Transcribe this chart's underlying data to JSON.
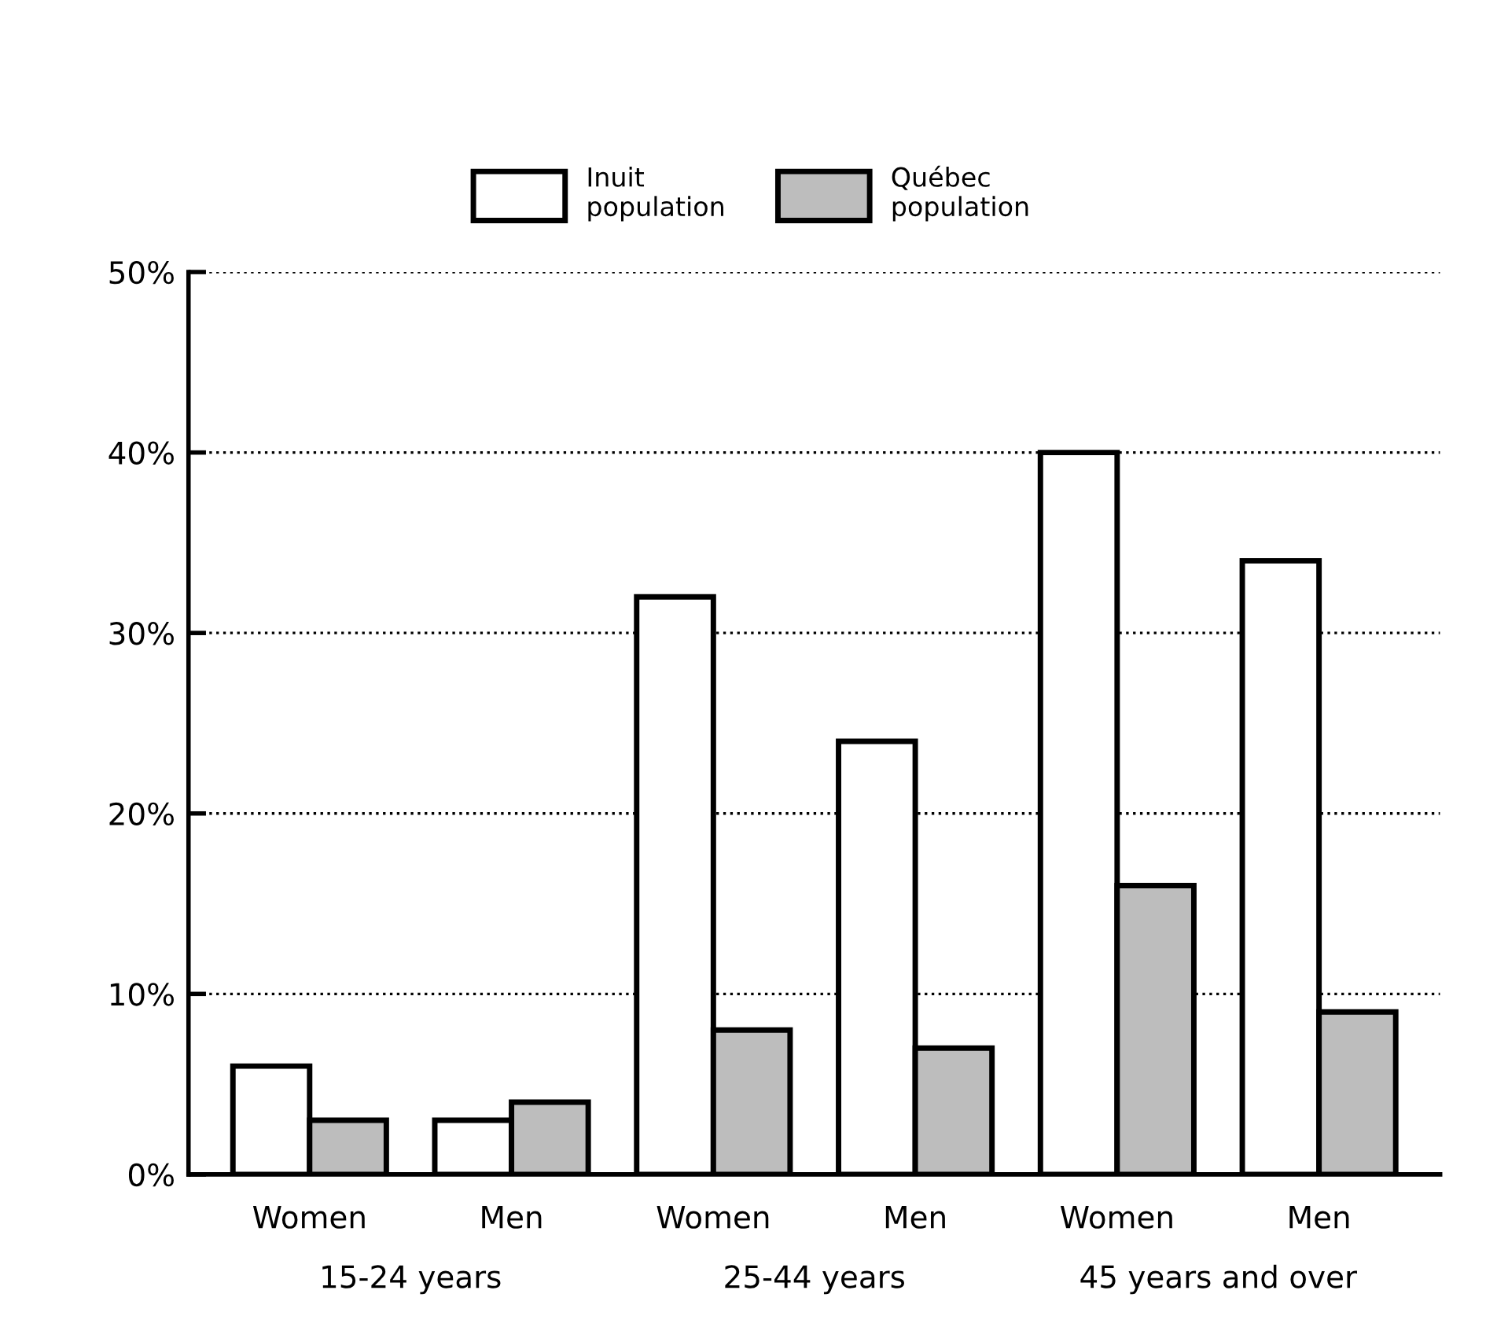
{
  "chart_data": {
    "type": "bar",
    "categories": [
      "Women",
      "Men",
      "Women",
      "Men",
      "Women",
      "Men"
    ],
    "series": [
      {
        "name": "Inuit\npopulation",
        "color": "#ffffff",
        "values": [
          6,
          3,
          32,
          24,
          40,
          34
        ]
      },
      {
        "name": "Québec\npopulation",
        "color": "#bdbdbd",
        "values": [
          3,
          4,
          8,
          7,
          16,
          9
        ]
      }
    ],
    "ylim": [
      0,
      50
    ],
    "yticks": [
      {
        "value": 0,
        "label": "0%"
      },
      {
        "value": 10,
        "label": "10%"
      },
      {
        "value": 20,
        "label": "20%"
      },
      {
        "value": 30,
        "label": "30%"
      },
      {
        "value": 40,
        "label": "40%"
      },
      {
        "value": 50,
        "label": "50%"
      }
    ],
    "grid": "y",
    "legend": "top",
    "annotations": [
      "15-24 years",
      "25-44 years",
      "45 years and over"
    ]
  }
}
